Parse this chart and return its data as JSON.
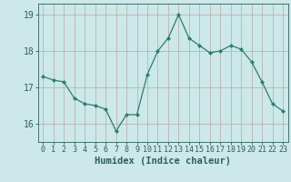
{
  "x": [
    0,
    1,
    2,
    3,
    4,
    5,
    6,
    7,
    8,
    9,
    10,
    11,
    12,
    13,
    14,
    15,
    16,
    17,
    18,
    19,
    20,
    21,
    22,
    23
  ],
  "y": [
    17.3,
    17.2,
    17.15,
    16.7,
    16.55,
    16.5,
    16.4,
    15.8,
    16.25,
    16.25,
    17.35,
    18.0,
    18.35,
    19.0,
    18.35,
    18.15,
    17.95,
    18.0,
    18.15,
    18.05,
    17.7,
    17.15,
    16.55,
    16.35
  ],
  "xlabel": "Humidex (Indice chaleur)",
  "ylim": [
    15.5,
    19.3
  ],
  "xlim": [
    -0.5,
    23.5
  ],
  "yticks": [
    16,
    17,
    18,
    19
  ],
  "xtick_labels": [
    "0",
    "1",
    "2",
    "3",
    "4",
    "5",
    "6",
    "7",
    "8",
    "9",
    "10",
    "11",
    "12",
    "13",
    "14",
    "15",
    "16",
    "17",
    "18",
    "19",
    "20",
    "21",
    "22",
    "23"
  ],
  "line_color": "#2e7d6e",
  "marker_color": "#2e7d6e",
  "bg_color": "#cce8e8",
  "grid_color": "#b8a8a8",
  "tick_label_color": "#2e5e5e",
  "axis_label_color": "#2e5e5e",
  "xlabel_fontsize": 7.5,
  "ytick_fontsize": 7,
  "xtick_fontsize": 6
}
